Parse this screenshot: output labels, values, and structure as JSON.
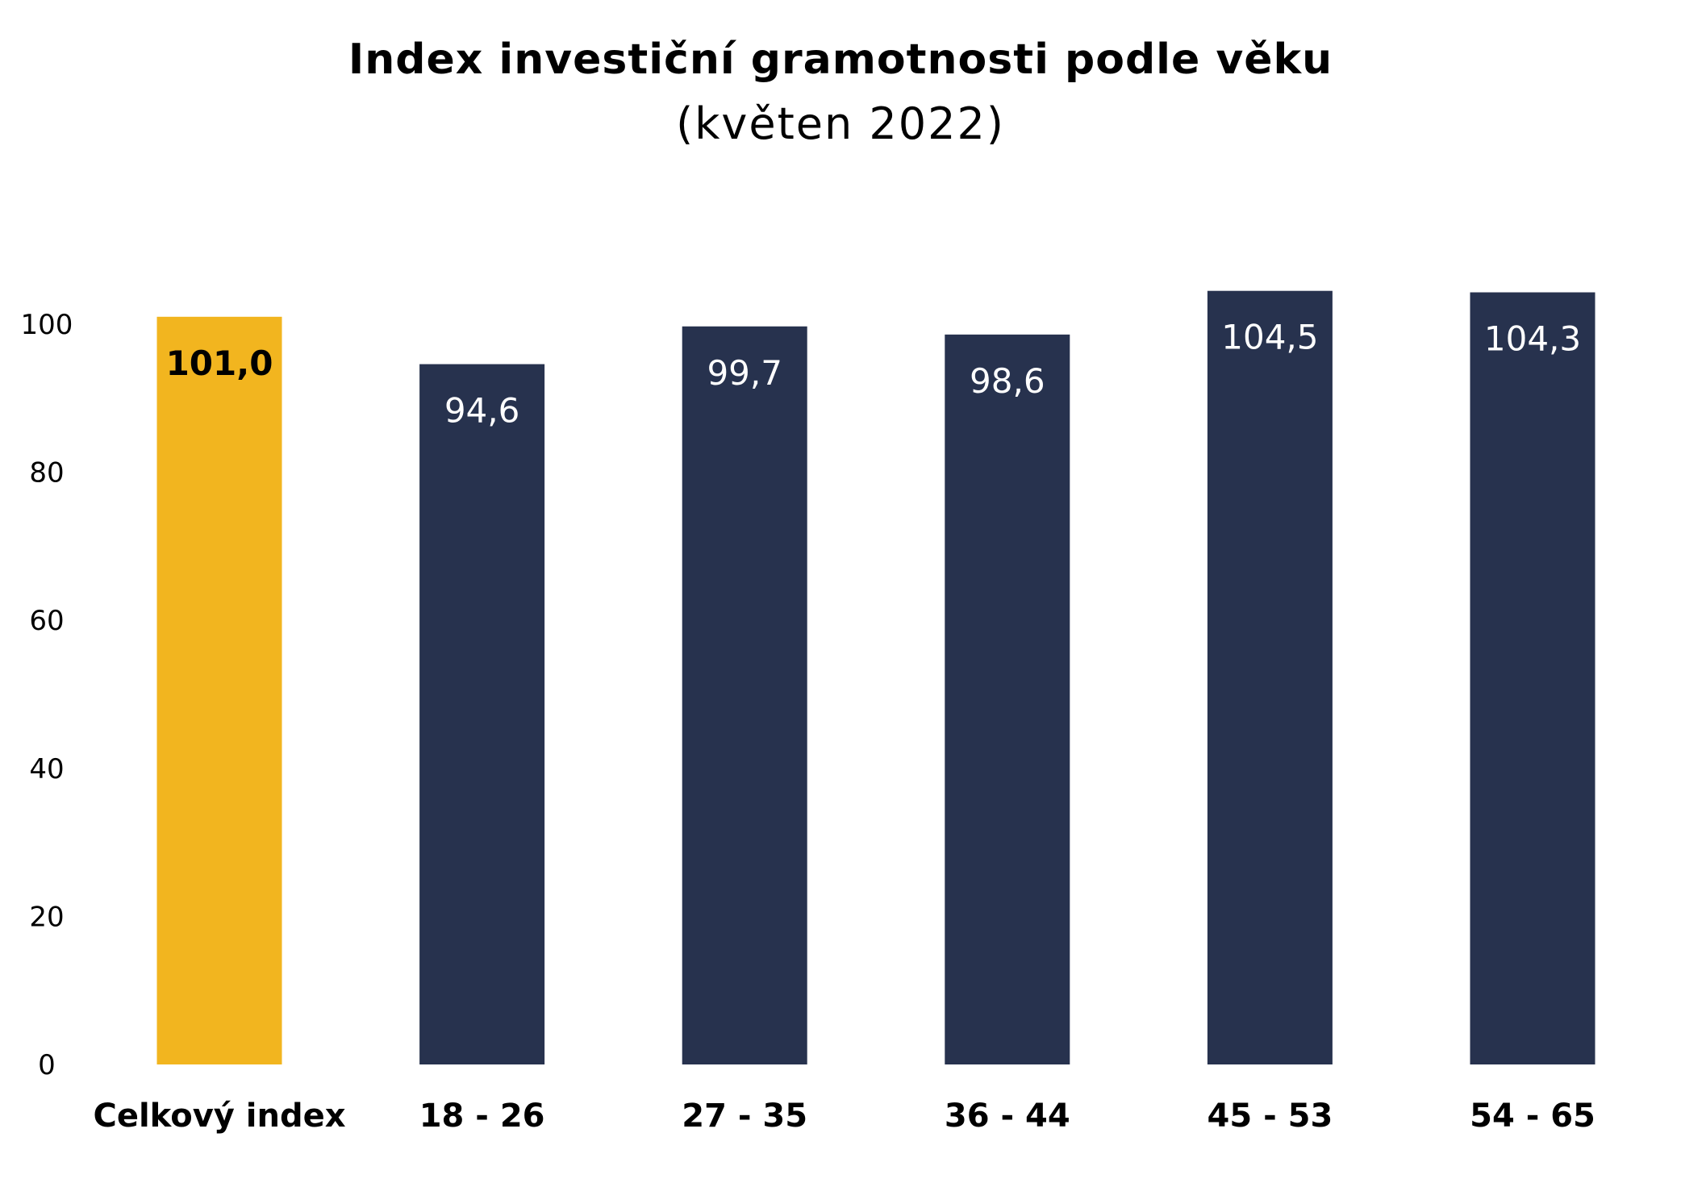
{
  "chart_data": {
    "type": "bar",
    "title": "Index investiční gramotnosti podle věku",
    "subtitle": "(květen 2022)",
    "categories": [
      "Celkový index",
      "18 - 26",
      "27 - 35",
      "36 - 44",
      "45 - 53",
      "54 - 65"
    ],
    "values": [
      101.0,
      94.6,
      99.7,
      98.6,
      104.5,
      104.3
    ],
    "data_labels": [
      "101,0",
      "94,6",
      "99,7",
      "98,6",
      "104,5",
      "104,3"
    ],
    "highlight_index": 0,
    "colors": {
      "highlight": "#F2B51F",
      "bar": "#27324E",
      "highlight_label": "#000000",
      "bar_label": "#FFFFFF"
    },
    "yticks": [
      "0",
      "20",
      "40",
      "60",
      "80",
      "100"
    ],
    "ytick_values": [
      0,
      20,
      40,
      60,
      80,
      100
    ],
    "ylim": [
      0,
      106
    ],
    "xlabel": "",
    "ylabel": "",
    "grid": false,
    "legend": "none"
  }
}
